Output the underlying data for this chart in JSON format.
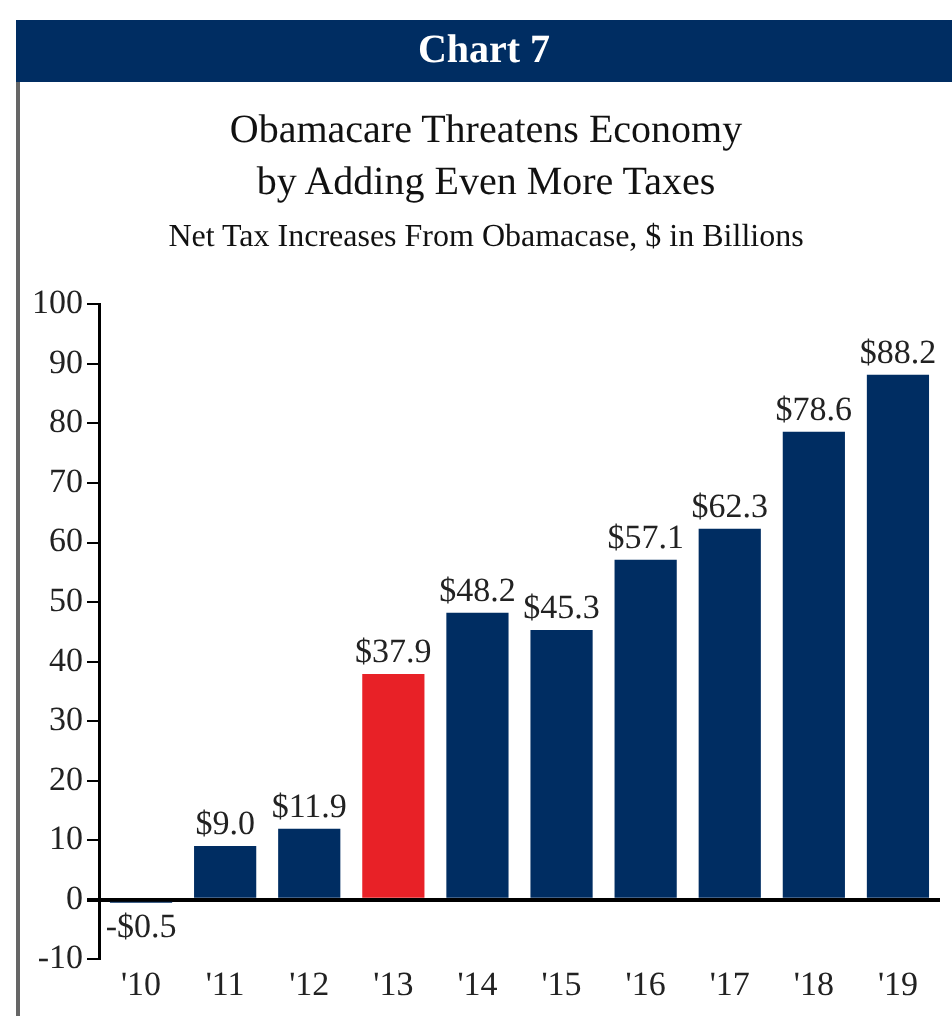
{
  "chart_data": {
    "type": "bar",
    "title": "Obamacare Threatens Economy\nby Adding Even More Taxes",
    "subtitle": "Net Tax Increases From Obamacase, $ in Billions",
    "annotations": [
      "Chart 7"
    ],
    "categories": [
      "'10",
      "'11",
      "'12",
      "'13",
      "'14",
      "'15",
      "'16",
      "'17",
      "'18",
      "'19"
    ],
    "values": [
      -0.5,
      9.0,
      11.9,
      37.9,
      48.2,
      45.3,
      57.1,
      62.3,
      78.6,
      88.2
    ],
    "colors": [
      "#002d62",
      "#002d62",
      "#002d62",
      "#e82127",
      "#002d62",
      "#002d62",
      "#002d62",
      "#002d62",
      "#002d62",
      "#002d62"
    ],
    "value_labels": [
      "-$0.5",
      "$9.0",
      "$11.9",
      "$37.9",
      "$48.2",
      "$45.3",
      "$57.1",
      "$62.3",
      "$78.6",
      "$88.2"
    ],
    "ylim": [
      -10,
      100
    ],
    "yticks": [
      -10,
      0,
      10,
      20,
      30,
      40,
      50,
      60,
      70,
      80,
      90,
      100
    ],
    "grid": false,
    "legend": false
  }
}
